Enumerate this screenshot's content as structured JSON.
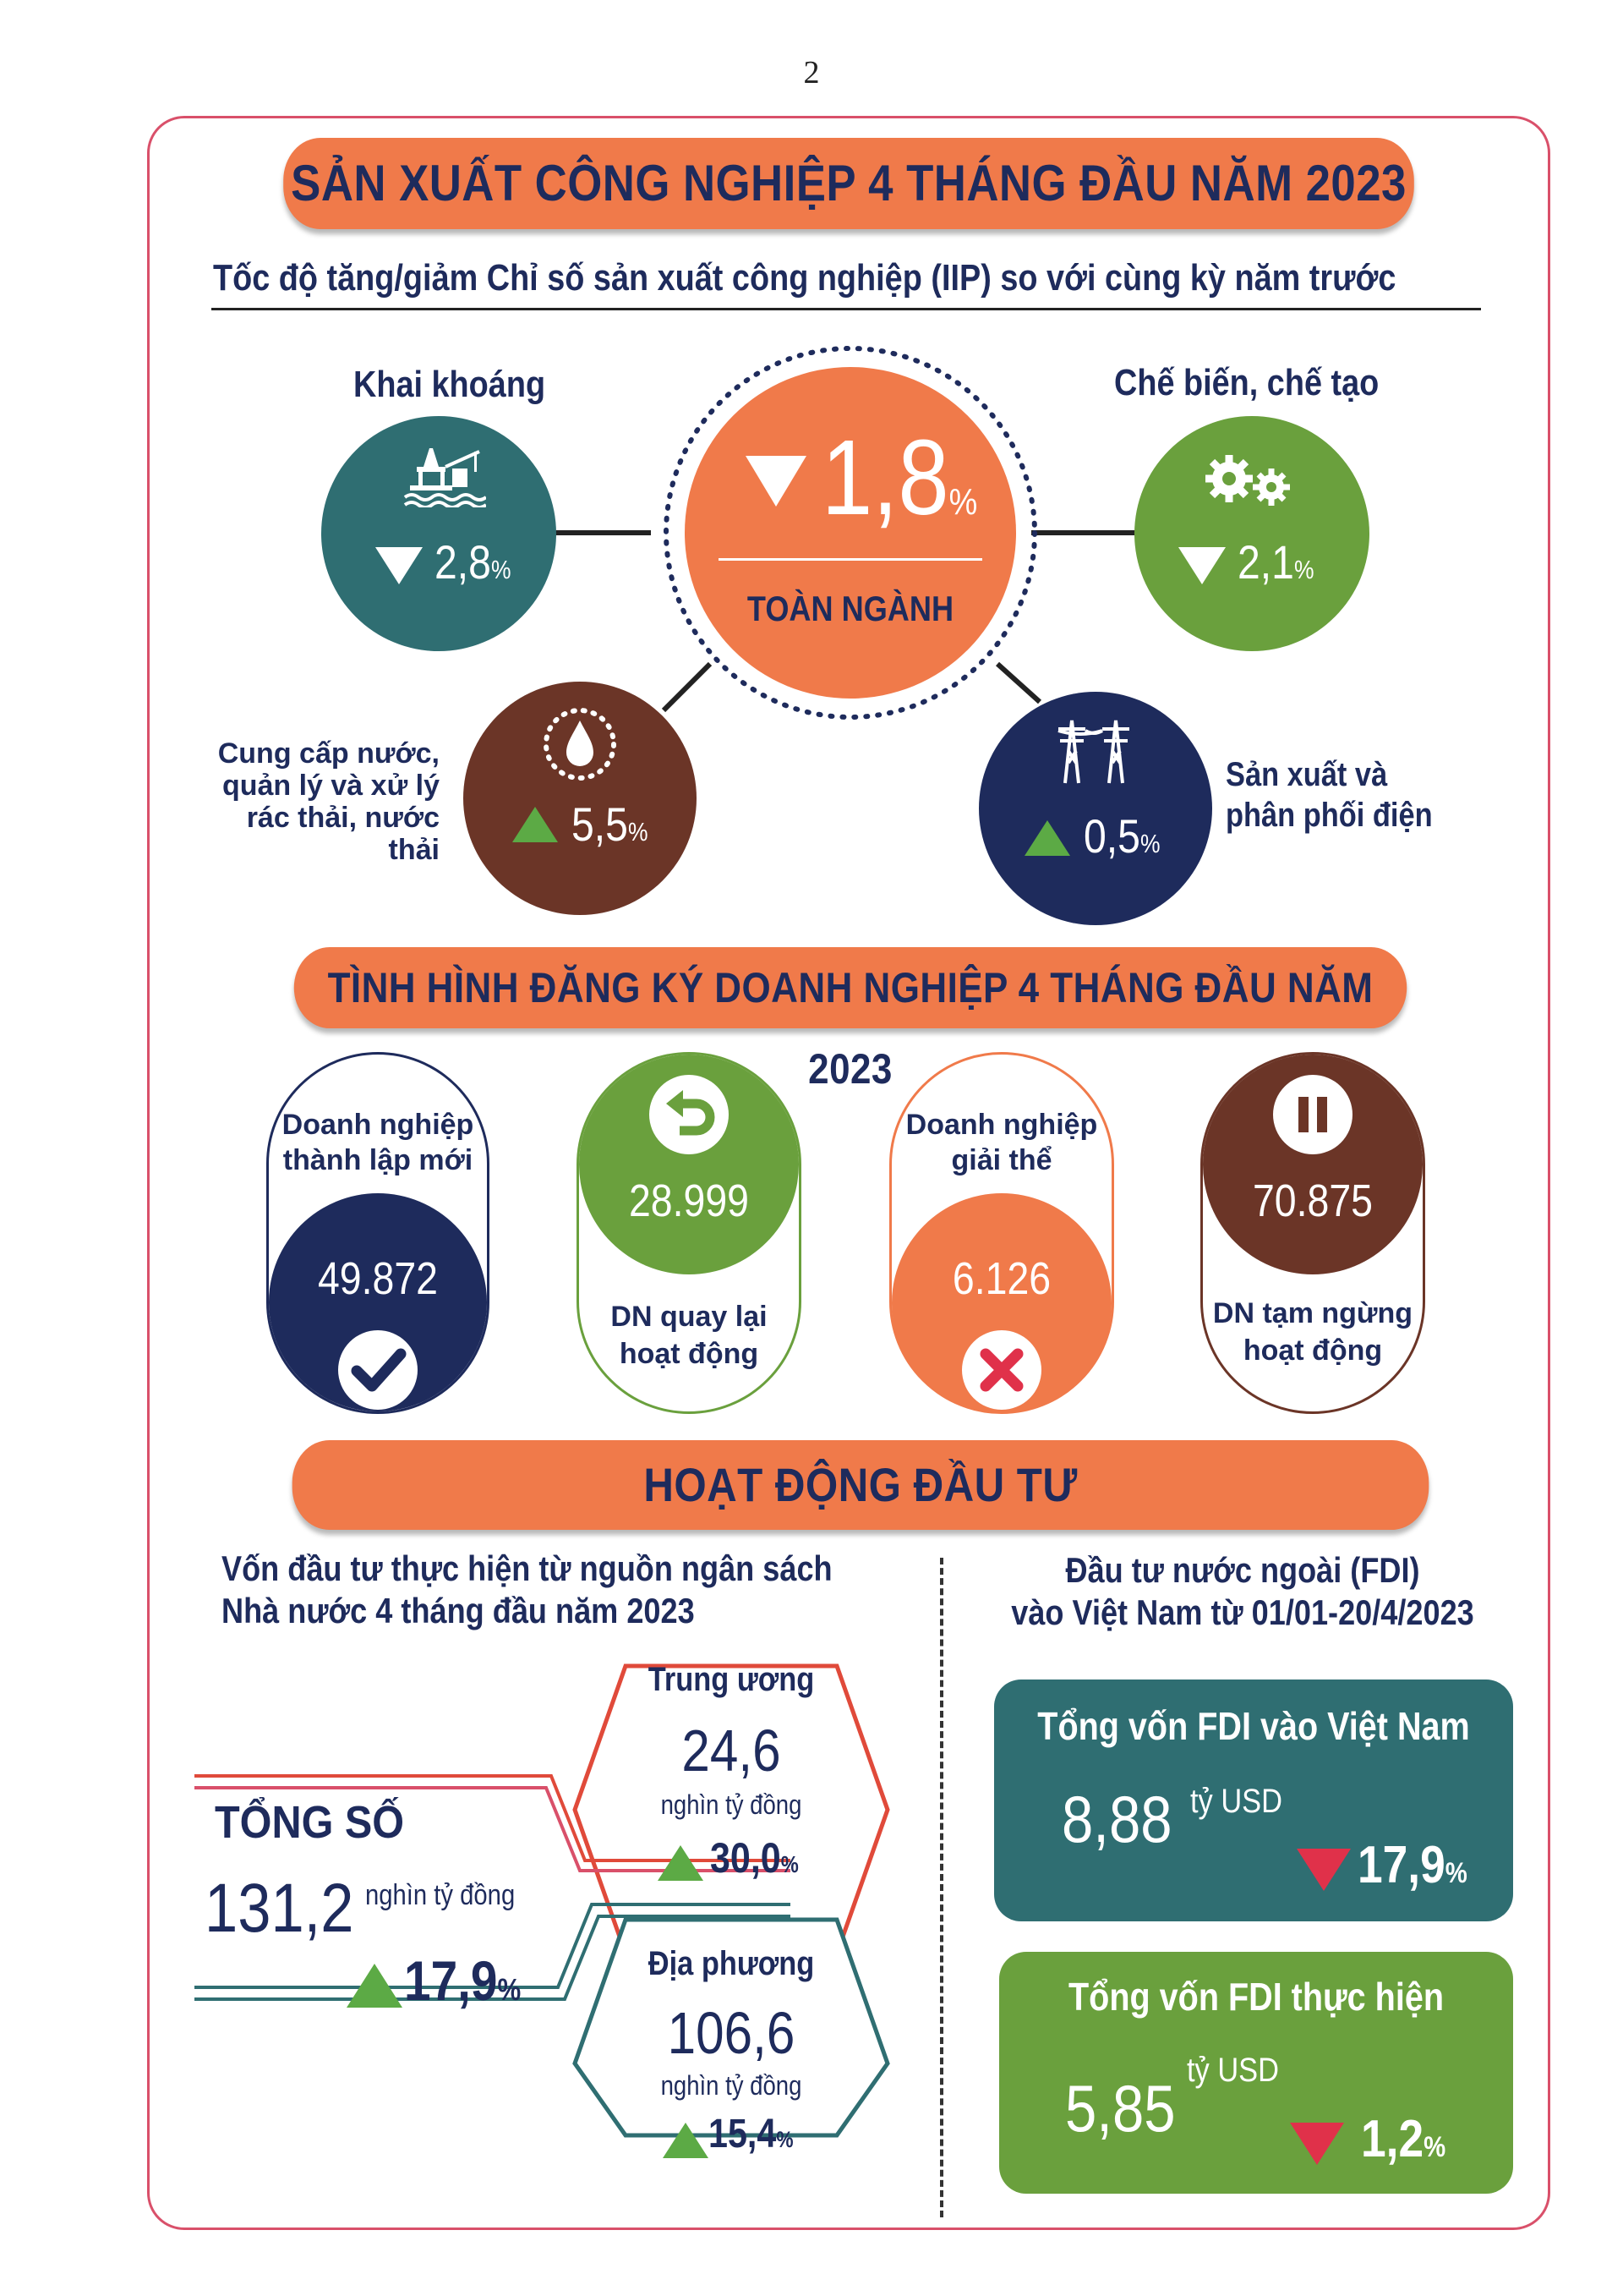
{
  "page_number": "2",
  "section1": {
    "title": "SẢN XUẤT CÔNG NGHIỆP 4 THÁNG ĐẦU NĂM 2023",
    "subtitle": "Tốc độ tăng/giảm Chỉ số sản xuất công nghiệp (IIP) so với cùng kỳ năm trước",
    "total": {
      "value": "1,8",
      "unit": "%",
      "label": "TOÀN NGÀNH",
      "direction": "down"
    },
    "mining": {
      "label": "Khai khoáng",
      "value": "2,8",
      "unit": "%",
      "direction": "down",
      "icon": "oil-rig-icon"
    },
    "manufacturing": {
      "label": "Chế biến, chế tạo",
      "value": "2,1",
      "unit": "%",
      "direction": "down",
      "icon": "gears-icon"
    },
    "water": {
      "label_lines": [
        "Cung cấp nước,",
        "quản lý và xử lý",
        "rác thải, nước thải"
      ],
      "value": "5,5",
      "unit": "%",
      "direction": "up",
      "icon": "water-drop-icon"
    },
    "electricity": {
      "label_lines": [
        "Sản xuất và",
        "phân phối điện"
      ],
      "value": "0,5",
      "unit": "%",
      "direction": "up",
      "icon": "power-tower-icon"
    }
  },
  "section2": {
    "title": "TÌNH HÌNH ĐĂNG KÝ DOANH NGHIỆP 4 THÁNG ĐẦU NĂM 2023",
    "new": {
      "label_lines": [
        "Doanh nghiệp",
        "thành lập mới"
      ],
      "value": "49.872"
    },
    "returned": {
      "label_lines": [
        "DN quay lại",
        "hoạt động"
      ],
      "value": "28.999"
    },
    "dissolved": {
      "label_lines": [
        "Doanh nghiệp",
        "giải thể"
      ],
      "value": "6.126"
    },
    "suspended": {
      "label_lines": [
        "DN tạm ngừng",
        "hoạt động"
      ],
      "value": "70.875"
    }
  },
  "section3": {
    "title": "HOẠT ĐỘNG ĐẦU TƯ",
    "budget": {
      "heading_lines": [
        "Vốn đầu tư thực hiện từ nguồn ngân sách",
        "Nhà nước 4 tháng đầu năm 2023"
      ],
      "total_label": "TỔNG SỐ",
      "total_value": "131,2",
      "total_unit": "nghìn tỷ đồng",
      "total_change": "17,9",
      "central": {
        "label": "Trung ương",
        "value": "24,6",
        "unit": "nghìn tỷ đồng",
        "change": "30,0"
      },
      "local": {
        "label": "Địa phương",
        "value": "106,6",
        "unit": "nghìn tỷ đồng",
        "change": "15,4"
      }
    },
    "fdi": {
      "heading_lines": [
        "Đầu tư nước ngoài (FDI)",
        "vào Việt Nam từ 01/01-20/4/2023"
      ],
      "registered": {
        "label": "Tổng vốn FDI vào Việt Nam",
        "value": "8,88",
        "unit": "tỷ USD",
        "change": "17,9",
        "direction": "down"
      },
      "implemented": {
        "label": "Tổng vốn FDI thực hiện",
        "value": "5,85",
        "unit": "tỷ USD",
        "change": "1,2",
        "direction": "down"
      }
    },
    "pct_sign": "%"
  },
  "colors": {
    "orange": "#f07a4a",
    "teal": "#2f6e72",
    "green": "#6aa03d",
    "brown": "#6b3527",
    "navy": "#1e2b5c",
    "up": "#5caa45",
    "down": "#e0314a",
    "frame": "#d9506a"
  }
}
